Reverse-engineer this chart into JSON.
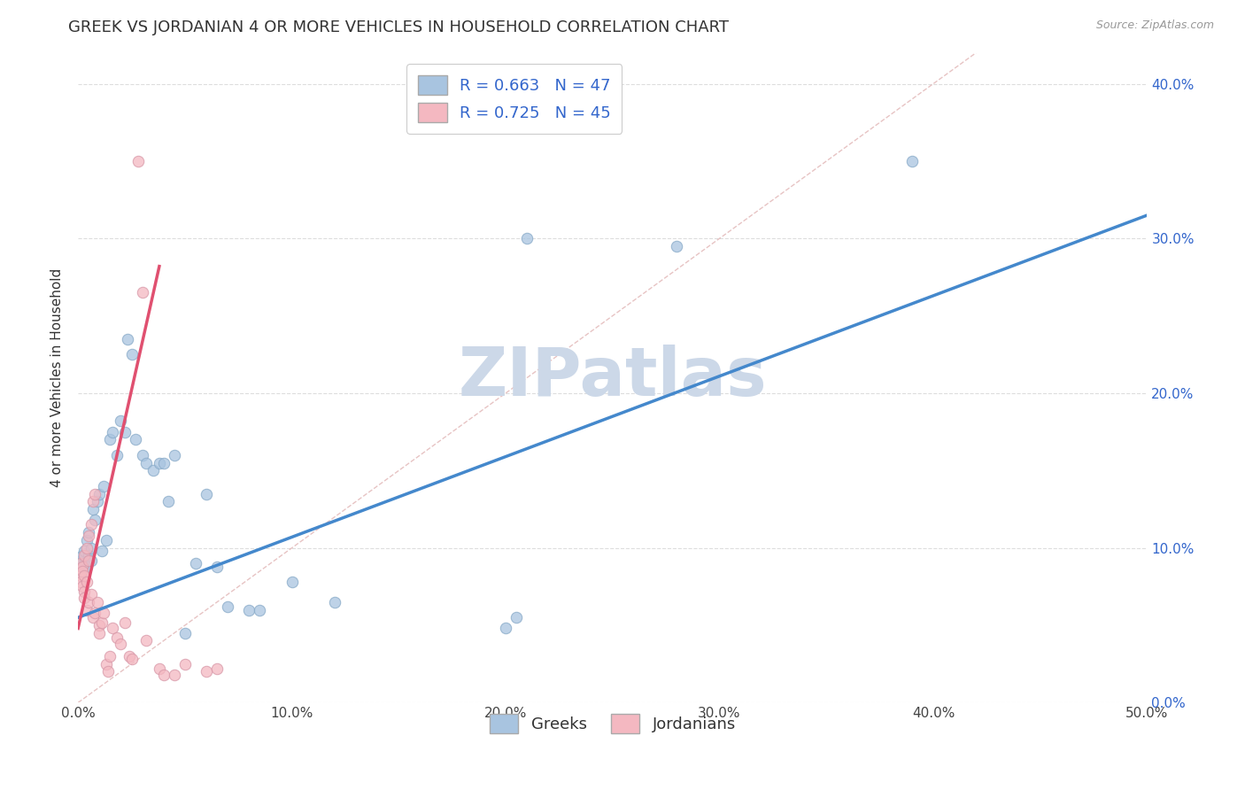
{
  "title": "GREEK VS JORDANIAN 4 OR MORE VEHICLES IN HOUSEHOLD CORRELATION CHART",
  "source": "Source: ZipAtlas.com",
  "ylabel": "4 or more Vehicles in Household",
  "xlim": [
    0.0,
    0.5
  ],
  "ylim": [
    0.0,
    0.42
  ],
  "xticks": [
    0.0,
    0.1,
    0.2,
    0.3,
    0.4,
    0.5
  ],
  "xtick_labels": [
    "0.0%",
    "10.0%",
    "20.0%",
    "30.0%",
    "40.0%",
    "50.0%"
  ],
  "yticks": [
    0.0,
    0.1,
    0.2,
    0.3,
    0.4
  ],
  "ytick_labels_right": [
    "0.0%",
    "10.0%",
    "20.0%",
    "30.0%",
    "40.0%"
  ],
  "greek_color": "#a8c4e0",
  "jordanian_color": "#f4b8c1",
  "greek_line_color": "#4488cc",
  "jordanian_line_color": "#e05070",
  "legend_R_color": "#3366cc",
  "watermark": "ZIPatlas",
  "watermark_color": "#ccd8e8",
  "greek_R": 0.663,
  "greek_N": 47,
  "jordanian_R": 0.725,
  "jordanian_N": 45,
  "greek_scatter": [
    [
      0.001,
      0.092
    ],
    [
      0.002,
      0.095
    ],
    [
      0.002,
      0.088
    ],
    [
      0.003,
      0.098
    ],
    [
      0.003,
      0.09
    ],
    [
      0.004,
      0.105
    ],
    [
      0.004,
      0.088
    ],
    [
      0.005,
      0.11
    ],
    [
      0.005,
      0.095
    ],
    [
      0.006,
      0.1
    ],
    [
      0.006,
      0.092
    ],
    [
      0.007,
      0.125
    ],
    [
      0.008,
      0.118
    ],
    [
      0.009,
      0.13
    ],
    [
      0.01,
      0.135
    ],
    [
      0.011,
      0.098
    ],
    [
      0.012,
      0.14
    ],
    [
      0.013,
      0.105
    ],
    [
      0.015,
      0.17
    ],
    [
      0.016,
      0.175
    ],
    [
      0.018,
      0.16
    ],
    [
      0.02,
      0.182
    ],
    [
      0.022,
      0.175
    ],
    [
      0.023,
      0.235
    ],
    [
      0.025,
      0.225
    ],
    [
      0.027,
      0.17
    ],
    [
      0.03,
      0.16
    ],
    [
      0.032,
      0.155
    ],
    [
      0.035,
      0.15
    ],
    [
      0.038,
      0.155
    ],
    [
      0.04,
      0.155
    ],
    [
      0.042,
      0.13
    ],
    [
      0.045,
      0.16
    ],
    [
      0.05,
      0.045
    ],
    [
      0.055,
      0.09
    ],
    [
      0.06,
      0.135
    ],
    [
      0.065,
      0.088
    ],
    [
      0.07,
      0.062
    ],
    [
      0.08,
      0.06
    ],
    [
      0.085,
      0.06
    ],
    [
      0.1,
      0.078
    ],
    [
      0.12,
      0.065
    ],
    [
      0.2,
      0.048
    ],
    [
      0.205,
      0.055
    ],
    [
      0.21,
      0.3
    ],
    [
      0.28,
      0.295
    ],
    [
      0.39,
      0.35
    ]
  ],
  "jordanian_scatter": [
    [
      0.001,
      0.082
    ],
    [
      0.001,
      0.078
    ],
    [
      0.001,
      0.09
    ],
    [
      0.002,
      0.088
    ],
    [
      0.002,
      0.075
    ],
    [
      0.002,
      0.085
    ],
    [
      0.003,
      0.095
    ],
    [
      0.003,
      0.082
    ],
    [
      0.003,
      0.072
    ],
    [
      0.003,
      0.068
    ],
    [
      0.004,
      0.1
    ],
    [
      0.004,
      0.078
    ],
    [
      0.004,
      0.06
    ],
    [
      0.005,
      0.108
    ],
    [
      0.005,
      0.092
    ],
    [
      0.005,
      0.065
    ],
    [
      0.006,
      0.115
    ],
    [
      0.006,
      0.07
    ],
    [
      0.007,
      0.13
    ],
    [
      0.007,
      0.055
    ],
    [
      0.008,
      0.135
    ],
    [
      0.008,
      0.058
    ],
    [
      0.009,
      0.065
    ],
    [
      0.01,
      0.05
    ],
    [
      0.01,
      0.045
    ],
    [
      0.011,
      0.052
    ],
    [
      0.012,
      0.058
    ],
    [
      0.013,
      0.025
    ],
    [
      0.014,
      0.02
    ],
    [
      0.015,
      0.03
    ],
    [
      0.016,
      0.048
    ],
    [
      0.018,
      0.042
    ],
    [
      0.02,
      0.038
    ],
    [
      0.022,
      0.052
    ],
    [
      0.024,
      0.03
    ],
    [
      0.025,
      0.028
    ],
    [
      0.028,
      0.35
    ],
    [
      0.03,
      0.265
    ],
    [
      0.032,
      0.04
    ],
    [
      0.038,
      0.022
    ],
    [
      0.04,
      0.018
    ],
    [
      0.045,
      0.018
    ],
    [
      0.05,
      0.025
    ],
    [
      0.06,
      0.02
    ],
    [
      0.065,
      0.022
    ]
  ],
  "greek_line": {
    "x0": 0.0,
    "y0": 0.055,
    "x1": 0.5,
    "y1": 0.315
  },
  "jordanian_line": {
    "x0": 0.0,
    "y0": 0.048,
    "x1": 0.038,
    "y1": 0.282
  },
  "diagonal_line": {
    "x0": 0.0,
    "y0": 0.0,
    "x1": 0.42,
    "y1": 0.42
  },
  "background_color": "#ffffff",
  "grid_color": "#dddddd",
  "title_fontsize": 13,
  "axis_label_fontsize": 11,
  "tick_fontsize": 11,
  "legend_fontsize": 13
}
